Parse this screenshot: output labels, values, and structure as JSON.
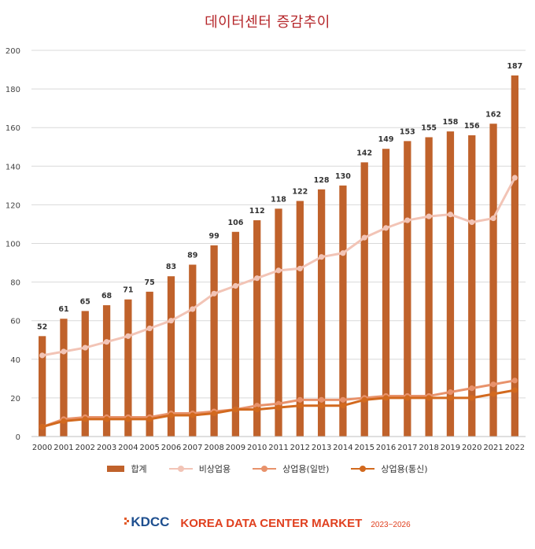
{
  "chart_data": {
    "type": "bar",
    "title": "데이터센터 증감추이",
    "categories": [
      "2000",
      "2001",
      "2002",
      "2003",
      "2004",
      "2005",
      "2006",
      "2007",
      "2008",
      "2009",
      "2010",
      "2011",
      "2012",
      "2013",
      "2014",
      "2015",
      "2016",
      "2017",
      "2018",
      "2019",
      "2020",
      "2021",
      "2022"
    ],
    "ylim": [
      0,
      200
    ],
    "yticks": [
      0,
      20,
      40,
      60,
      80,
      100,
      120,
      140,
      160,
      180,
      200
    ],
    "grid": true,
    "legend_position": "bottom",
    "series": [
      {
        "name": "합계",
        "type": "bar",
        "color": "#c0622b",
        "values": [
          52,
          61,
          65,
          68,
          71,
          75,
          83,
          89,
          99,
          106,
          112,
          118,
          122,
          128,
          130,
          142,
          149,
          153,
          155,
          158,
          156,
          162,
          187
        ]
      },
      {
        "name": "비상업용",
        "type": "line",
        "color": "#f2c4b6",
        "values": [
          42,
          44,
          46,
          49,
          52,
          56,
          60,
          66,
          74,
          78,
          82,
          86,
          87,
          93,
          95,
          103,
          108,
          112,
          114,
          115,
          111,
          113,
          134
        ]
      },
      {
        "name": "상업용(일반)",
        "type": "line",
        "color": "#e8926b",
        "values": [
          5,
          9,
          10,
          10,
          10,
          10,
          12,
          12,
          13,
          14,
          16,
          17,
          19,
          19,
          19,
          20,
          21,
          21,
          21,
          23,
          25,
          27,
          29
        ]
      },
      {
        "name": "상업용(통신)",
        "type": "line",
        "color": "#d2691e",
        "values": [
          5,
          8,
          9,
          9,
          9,
          9,
          11,
          11,
          12,
          14,
          14,
          15,
          16,
          16,
          16,
          19,
          20,
          20,
          20,
          20,
          20,
          22,
          24
        ]
      }
    ]
  },
  "footer": {
    "logo_text": "KDCC",
    "market_text": "KOREA DATA CENTER MARKET",
    "years_text": "2023~2026"
  }
}
